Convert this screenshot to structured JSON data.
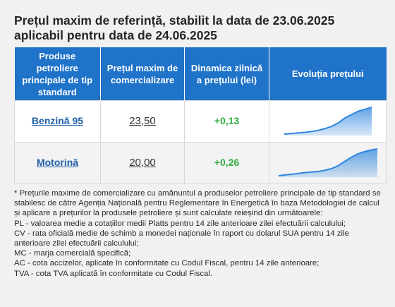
{
  "title_line1": "Prețul maxim de referință, stabilit la data de 23.06.2025",
  "title_line2": "aplicabil pentru data de 24.06.2025",
  "table": {
    "headers": [
      "Produse petroliere principale de tip standard",
      "Prețul maxim de comercializare",
      "Dinamica zilnică a prețului (lei)",
      "Evoluția prețului"
    ],
    "rows": [
      {
        "product": "Benzină 95",
        "price": "23,50",
        "dynamic": "+0,13",
        "trend": [
          0.05,
          0.07,
          0.09,
          0.11,
          0.14,
          0.18,
          0.24,
          0.32,
          0.44,
          0.62,
          0.74,
          0.86,
          0.93,
          1.0
        ]
      },
      {
        "product": "Motorină",
        "price": "20,00",
        "dynamic": "+0,26",
        "trend": [
          0.05,
          0.08,
          0.1,
          0.13,
          0.16,
          0.18,
          0.2,
          0.24,
          0.3,
          0.4,
          0.55,
          0.7,
          0.82,
          0.9,
          0.96,
          1.0
        ]
      }
    ]
  },
  "colors": {
    "header_bg": "#1f73c9",
    "link": "#1f5fa8",
    "positive": "#2eaa3f",
    "sparkline": "#2f86de"
  },
  "notes": [
    "* Prețurile maxime de comercializare cu amănuntul a produselor petroliere principale de tip standard se stabilesc de către Agenția Națională pentru Reglementare în Energetică în baza Metodologiei de calcul și aplicare a prețurilor la produsele petroliere și sunt calculate reieșind din următoarele:",
    "PL - valoarea medie a cotațiilor medii Platts pentru 14 zile anterioare zilei efectuării calculului;",
    "CV - rata oficială medie de schimb a monedei naționale în raport cu dolarul SUA pentru 14 zile anterioare zilei efectuării calculului;",
    "MC - marja comercială specifică;",
    "AC - cota accizelor, aplicate în conformitate cu Codul Fiscal, pentru 14 zile anterioare;",
    "TVA - cota TVA aplicată în conformitate cu Codul Fiscal."
  ]
}
